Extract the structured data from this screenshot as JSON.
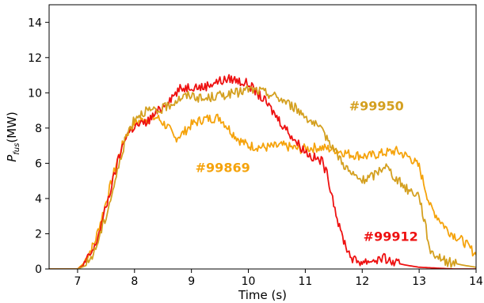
{
  "chart_data": {
    "type": "line",
    "xlabel": "Time (s)",
    "ylabel_main": "P",
    "ylabel_sub": "fus",
    "ylabel_unit": "(MW)",
    "xlim": [
      6.5,
      14
    ],
    "ylim": [
      0,
      15
    ],
    "xticks": [
      "7",
      "8",
      "9",
      "10",
      "11",
      "12",
      "13",
      "14"
    ],
    "yticks": [
      "0",
      "2",
      "4",
      "6",
      "8",
      "10",
      "12",
      "14"
    ],
    "grid": false,
    "series": [
      {
        "name": "#99869",
        "color": "#f5a30c",
        "x": [
          6.5,
          7.0,
          7.1,
          7.3,
          7.5,
          7.7,
          7.85,
          8.0,
          8.2,
          8.4,
          8.6,
          8.7,
          8.85,
          9.0,
          9.2,
          9.5,
          9.7,
          9.85,
          10.0,
          10.3,
          10.6,
          10.9,
          11.2,
          11.5,
          11.8,
          12.1,
          12.4,
          12.6,
          12.85,
          13.0,
          13.2,
          13.5,
          13.8,
          14.0
        ],
        "y": [
          0,
          0,
          0.3,
          1.5,
          3.8,
          6.2,
          7.6,
          8.3,
          8.5,
          8.6,
          8.0,
          7.4,
          7.7,
          8.2,
          8.5,
          8.6,
          7.8,
          7.3,
          7.0,
          6.9,
          7.0,
          6.8,
          6.9,
          6.8,
          6.5,
          6.4,
          6.6,
          6.7,
          6.3,
          5.8,
          3.5,
          2.2,
          1.5,
          0.8
        ]
      },
      {
        "name": "#99912",
        "color": "#ee1111",
        "x": [
          6.5,
          7.0,
          7.1,
          7.3,
          7.5,
          7.7,
          7.85,
          8.0,
          8.2,
          8.4,
          8.6,
          8.8,
          9.0,
          9.2,
          9.4,
          9.7,
          10.0,
          10.3,
          10.6,
          10.9,
          11.1,
          11.3,
          11.4,
          11.5,
          11.6,
          11.75,
          11.85,
          12.0,
          12.2,
          12.4,
          12.5,
          12.8,
          13.0,
          13.3,
          13.6,
          14.0
        ],
        "y": [
          0,
          0,
          0.2,
          1.2,
          3.5,
          6.0,
          7.6,
          8.1,
          8.3,
          8.9,
          9.6,
          10.2,
          10.4,
          10.3,
          10.6,
          10.8,
          10.5,
          9.5,
          8.2,
          7.0,
          6.4,
          6.1,
          5.2,
          3.8,
          2.3,
          1.0,
          0.5,
          0.4,
          0.5,
          0.6,
          0.4,
          0.2,
          0.1,
          0.05,
          0,
          0
        ]
      },
      {
        "name": "#99950",
        "color": "#d4a020",
        "x": [
          6.5,
          7.0,
          7.15,
          7.3,
          7.5,
          7.7,
          7.85,
          8.0,
          8.2,
          8.4,
          8.6,
          8.8,
          9.0,
          9.2,
          9.4,
          9.6,
          9.8,
          10.0,
          10.2,
          10.4,
          10.6,
          10.8,
          11.0,
          11.2,
          11.4,
          11.6,
          11.8,
          12.0,
          12.2,
          12.4,
          12.6,
          12.8,
          13.0,
          13.2,
          13.5,
          13.8,
          14.0
        ],
        "y": [
          0,
          0,
          0.2,
          1.0,
          3.0,
          5.5,
          7.5,
          8.6,
          9.0,
          8.9,
          9.3,
          9.7,
          9.9,
          9.6,
          9.8,
          9.9,
          10.0,
          10.2,
          10.1,
          9.9,
          9.6,
          9.2,
          8.7,
          8.1,
          7.4,
          6.3,
          5.4,
          5.0,
          5.3,
          5.9,
          5.1,
          4.5,
          4.2,
          1.0,
          0.4,
          0.2,
          0.1
        ]
      }
    ],
    "annotations": [
      {
        "text": "#99950",
        "x": 12.25,
        "y": 9.0,
        "color": "#d4a020"
      },
      {
        "text": "#99869",
        "x": 9.55,
        "y": 5.5,
        "color": "#f5a30c"
      },
      {
        "text": "#99912",
        "x": 12.5,
        "y": 1.6,
        "color": "#ee1111"
      }
    ]
  }
}
